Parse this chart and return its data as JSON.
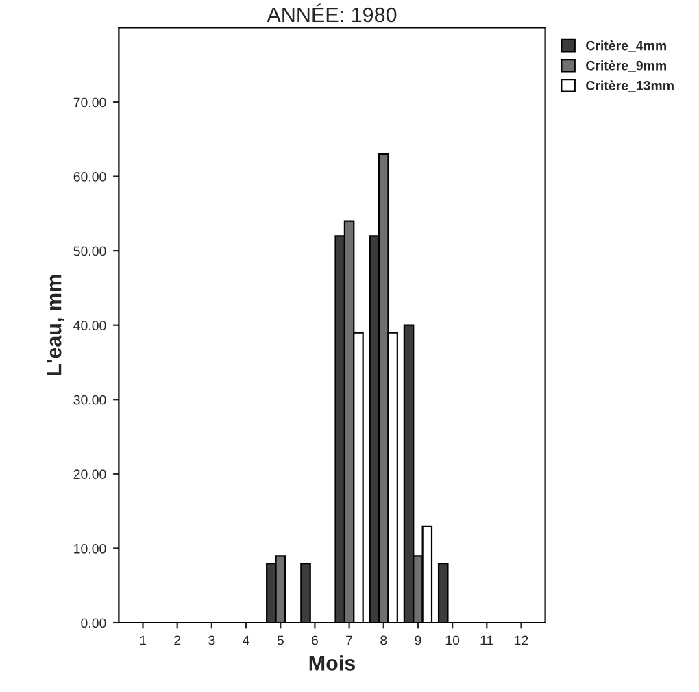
{
  "chart_data": {
    "type": "bar",
    "title": "ANNÉE: 1980",
    "xlabel": "Mois",
    "ylabel": "L'eau, mm",
    "categories": [
      "1",
      "2",
      "3",
      "4",
      "5",
      "6",
      "7",
      "8",
      "9",
      "10",
      "11",
      "12"
    ],
    "series": [
      {
        "name": "Critère_4mm",
        "color": "#3c3c3c",
        "values": [
          null,
          null,
          null,
          null,
          8,
          8,
          52,
          52,
          40,
          8,
          null,
          null
        ]
      },
      {
        "name": "Critère_9mm",
        "color": "#707070",
        "values": [
          null,
          null,
          null,
          null,
          9,
          null,
          54,
          63,
          9,
          null,
          null,
          null
        ]
      },
      {
        "name": "Critère_13mm",
        "color": "#ffffff",
        "values": [
          null,
          null,
          null,
          null,
          null,
          null,
          39,
          39,
          13,
          null,
          null,
          null
        ]
      }
    ],
    "ylim": [
      0,
      80
    ],
    "yticks": [
      {
        "value": 0,
        "label": "0.00"
      },
      {
        "value": 10,
        "label": "10.00"
      },
      {
        "value": 20,
        "label": "20.00"
      },
      {
        "value": 30,
        "label": "30.00"
      },
      {
        "value": 40,
        "label": "40.00"
      },
      {
        "value": 50,
        "label": "50.00"
      },
      {
        "value": 60,
        "label": "60.00"
      },
      {
        "value": 70,
        "label": "70.00"
      }
    ],
    "grid": false,
    "legend": "top right"
  }
}
